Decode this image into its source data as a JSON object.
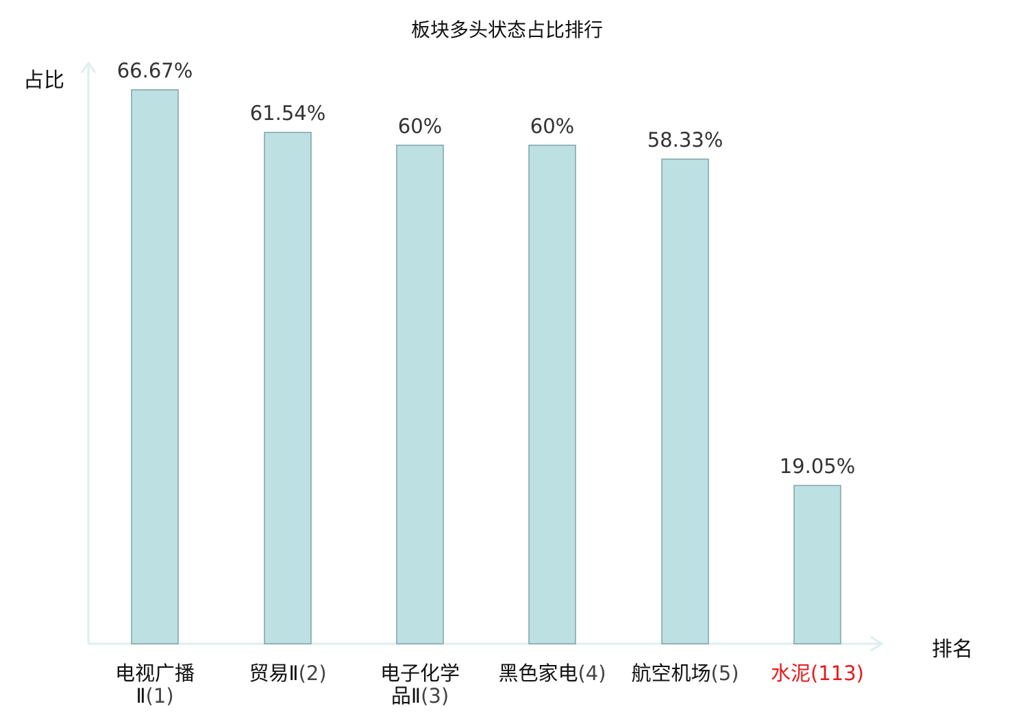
{
  "chart_data": {
    "type": "bar",
    "title": "板块多头状态占比排行",
    "ylabel": "占比",
    "xlabel": "排名",
    "categories": [
      {
        "name_line1": "电视广播",
        "name_line2": "Ⅱ",
        "rank": "(1)"
      },
      {
        "name_line1": "贸易Ⅱ",
        "name_line2": "",
        "rank": "(2)"
      },
      {
        "name_line1": "电子化学",
        "name_line2": "品Ⅱ",
        "rank": "(3)"
      },
      {
        "name_line1": "黑色家电",
        "name_line2": "",
        "rank": "(4)"
      },
      {
        "name_line1": "航空机场",
        "name_line2": "",
        "rank": "(5)"
      },
      {
        "name_line1": "水泥",
        "name_line2": "",
        "rank": "(113)",
        "highlight": true
      }
    ],
    "values": [
      66.67,
      61.54,
      60,
      60,
      58.33,
      19.05
    ],
    "value_labels": [
      "66.67%",
      "61.54%",
      "60%",
      "60%",
      "58.33%",
      "19.05%"
    ],
    "ylim": [
      0,
      70
    ],
    "grid": false,
    "colors": {
      "bar_fill": "#bde0e3",
      "bar_stroke": "#7fa3a6",
      "axis": "#dcefee",
      "highlight_label": "#e8191b",
      "value_label": "#333333"
    }
  }
}
